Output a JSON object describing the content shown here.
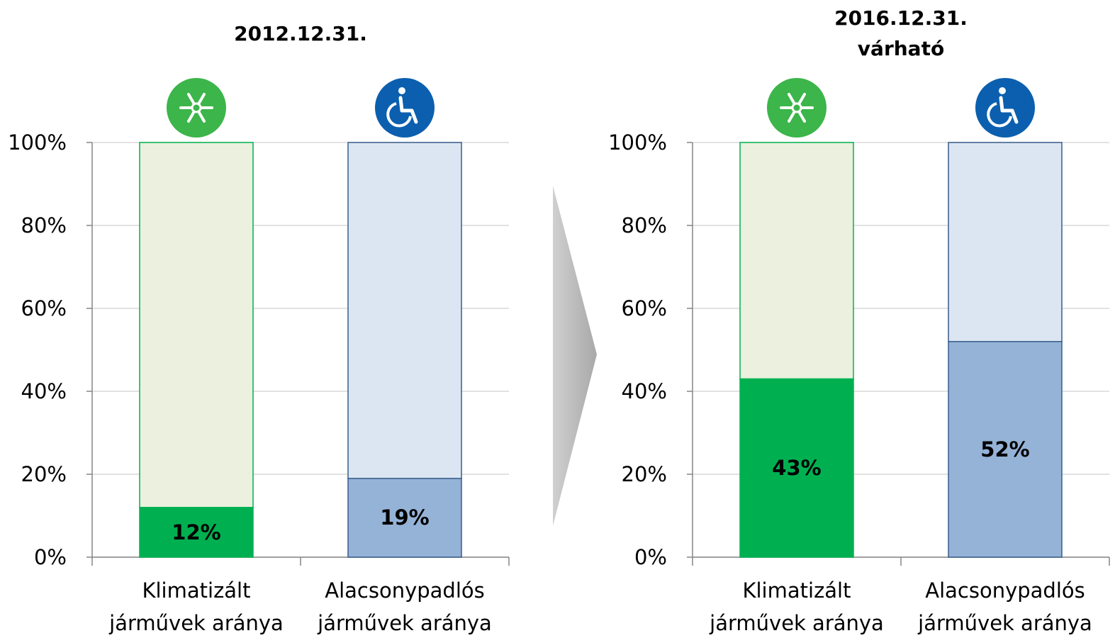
{
  "chart_data": [
    {
      "type": "stacked_bar",
      "title": "2012.12.31.",
      "categories": [
        "Klimatizált járművek aránya",
        "Alacsonypadlós járművek aránya"
      ],
      "series": [
        {
          "colors": [
            "#00b050",
            "#95b3d7"
          ],
          "values": [
            12,
            19
          ],
          "value_labels": [
            "12%",
            "19%"
          ]
        },
        {
          "colors": [
            "#ebf1de",
            "#dce6f2"
          ],
          "values": [
            88,
            81
          ]
        }
      ],
      "border_colors": [
        "#00b050",
        "#385d8a"
      ],
      "ylim": [
        0,
        100
      ],
      "yticks": [
        {
          "value": 0,
          "label": "0%"
        },
        {
          "value": 20,
          "label": "20%"
        },
        {
          "value": 40,
          "label": "40%"
        },
        {
          "value": 60,
          "label": "60%"
        },
        {
          "value": 80,
          "label": "80%"
        },
        {
          "value": 100,
          "label": "100%"
        }
      ],
      "grid": true
    },
    {
      "type": "stacked_bar",
      "title": "2016.12.31. várható",
      "categories": [
        "Klimatizált járművek aránya",
        "Alacsonypadlós járművek aránya"
      ],
      "series": [
        {
          "colors": [
            "#00b050",
            "#95b3d7"
          ],
          "values": [
            43,
            52
          ],
          "value_labels": [
            "43%",
            "52%"
          ]
        },
        {
          "colors": [
            "#ebf1de",
            "#dce6f2"
          ],
          "values": [
            57,
            48
          ]
        }
      ],
      "border_colors": [
        "#00b050",
        "#385d8a"
      ],
      "ylim": [
        0,
        100
      ],
      "yticks": [
        {
          "value": 0,
          "label": "0%"
        },
        {
          "value": 20,
          "label": "20%"
        },
        {
          "value": 40,
          "label": "40%"
        },
        {
          "value": 60,
          "label": "60%"
        },
        {
          "value": 80,
          "label": "80%"
        },
        {
          "value": 100,
          "label": "100%"
        }
      ],
      "grid": true
    }
  ]
}
